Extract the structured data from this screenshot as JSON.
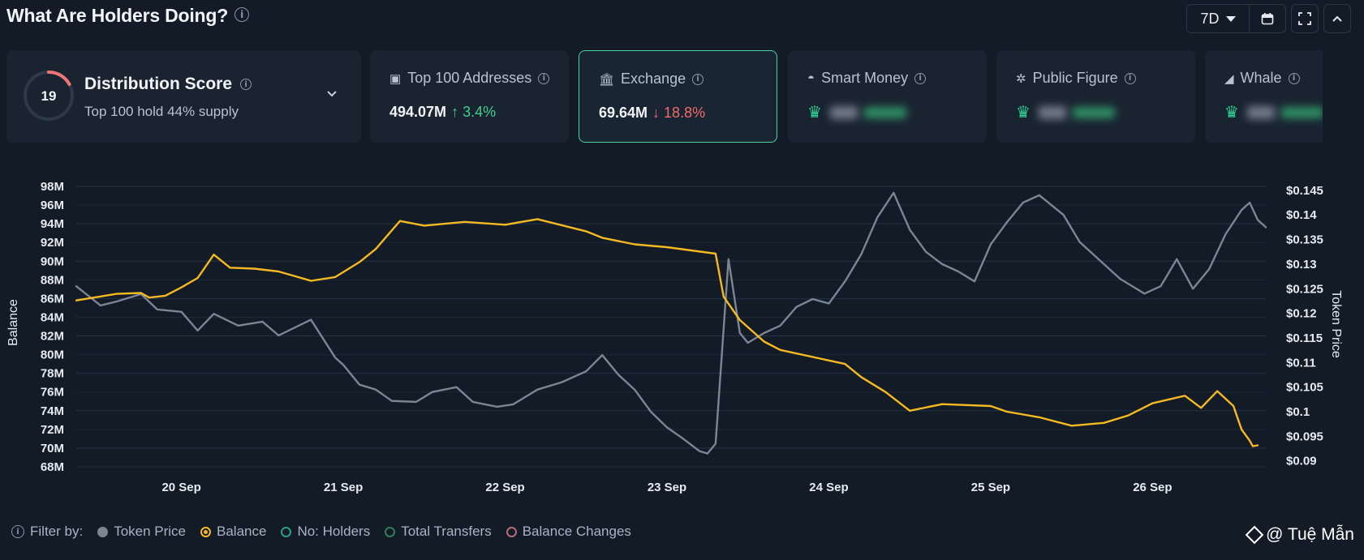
{
  "header": {
    "title": "What Are Holders Doing?",
    "range": "7D"
  },
  "cards": {
    "distribution": {
      "score": "19",
      "title": "Distribution Score",
      "subtitle": "Top 100 hold 44% supply"
    },
    "top100": {
      "label": "Top 100 Addresses",
      "value": "494.07M",
      "change": "↑ 3.4%"
    },
    "exchange": {
      "label": "Exchange",
      "value": "69.64M",
      "change": "↓ 18.8%"
    },
    "smart_money": {
      "label": "Smart Money"
    },
    "public_figure": {
      "label": "Public Figure"
    },
    "whale": {
      "label": "Whale"
    }
  },
  "legend": {
    "filter_label": "Filter by:",
    "items": [
      "Token Price",
      "Balance",
      "No: Holders",
      "Total Transfers",
      "Balance Changes"
    ]
  },
  "watermark": "@ Tuệ Mẫn",
  "colors": {
    "balance": "#f5b922",
    "price": "#7b8594",
    "accent": "#3ecf8e",
    "negative": "#f36a6a"
  },
  "chart_data": {
    "type": "line",
    "ylabel": "Balance",
    "ylabel_right": "Token Price",
    "x_labels": [
      "20 Sep",
      "21 Sep",
      "22 Sep",
      "23 Sep",
      "24 Sep",
      "25 Sep",
      "26 Sep"
    ],
    "x_range": [
      19.35,
      26.7
    ],
    "y_left_ticks": [
      "98M",
      "96M",
      "94M",
      "92M",
      "90M",
      "88M",
      "86M",
      "84M",
      "82M",
      "80M",
      "78M",
      "76M",
      "74M",
      "72M",
      "70M",
      "68M"
    ],
    "y_left_range": [
      68,
      98
    ],
    "y_right_ticks": [
      "$0.145",
      "$0.14",
      "$0.135",
      "$0.13",
      "$0.125",
      "$0.12",
      "$0.115",
      "$0.11",
      "$0.105",
      "$0.1",
      "$0.095",
      "$0.09"
    ],
    "y_right_range": [
      0.0888,
      0.1458
    ],
    "grid": true,
    "series": [
      {
        "name": "Balance",
        "axis": "left",
        "points": [
          [
            19.35,
            85.8
          ],
          [
            19.6,
            86.5
          ],
          [
            19.75,
            86.6
          ],
          [
            19.8,
            86.1
          ],
          [
            19.9,
            86.3
          ],
          [
            20.0,
            87.2
          ],
          [
            20.1,
            88.2
          ],
          [
            20.2,
            90.7
          ],
          [
            20.3,
            89.3
          ],
          [
            20.45,
            89.2
          ],
          [
            20.6,
            88.9
          ],
          [
            20.8,
            87.9
          ],
          [
            20.95,
            88.3
          ],
          [
            21.1,
            89.9
          ],
          [
            21.2,
            91.3
          ],
          [
            21.35,
            94.3
          ],
          [
            21.5,
            93.8
          ],
          [
            21.75,
            94.2
          ],
          [
            22.0,
            93.9
          ],
          [
            22.2,
            94.5
          ],
          [
            22.5,
            93.2
          ],
          [
            22.6,
            92.5
          ],
          [
            22.8,
            91.8
          ],
          [
            23.0,
            91.5
          ],
          [
            23.3,
            90.8
          ],
          [
            23.35,
            86.2
          ],
          [
            23.45,
            83.7
          ],
          [
            23.6,
            81.4
          ],
          [
            23.7,
            80.5
          ],
          [
            24.1,
            79.0
          ],
          [
            24.2,
            77.6
          ],
          [
            24.35,
            76.0
          ],
          [
            24.5,
            74.0
          ],
          [
            24.7,
            74.7
          ],
          [
            25.0,
            74.5
          ],
          [
            25.1,
            73.9
          ],
          [
            25.3,
            73.3
          ],
          [
            25.5,
            72.4
          ],
          [
            25.7,
            72.7
          ],
          [
            25.85,
            73.5
          ],
          [
            26.0,
            74.8
          ],
          [
            26.2,
            75.6
          ],
          [
            26.3,
            74.3
          ],
          [
            26.4,
            76.1
          ],
          [
            26.5,
            74.5
          ],
          [
            26.55,
            72.0
          ],
          [
            26.6,
            70.8
          ],
          [
            26.62,
            70.2
          ],
          [
            26.65,
            70.3
          ]
        ]
      },
      {
        "name": "Token Price",
        "axis": "right",
        "points": [
          [
            19.35,
            0.1255
          ],
          [
            19.5,
            0.1216
          ],
          [
            19.6,
            0.1224
          ],
          [
            19.75,
            0.1239
          ],
          [
            19.85,
            0.1208
          ],
          [
            20.0,
            0.1203
          ],
          [
            20.1,
            0.1165
          ],
          [
            20.2,
            0.1199
          ],
          [
            20.35,
            0.1175
          ],
          [
            20.5,
            0.1183
          ],
          [
            20.6,
            0.1155
          ],
          [
            20.8,
            0.1187
          ],
          [
            20.95,
            0.111
          ],
          [
            21.0,
            0.1095
          ],
          [
            21.1,
            0.1055
          ],
          [
            21.2,
            0.1045
          ],
          [
            21.3,
            0.1022
          ],
          [
            21.45,
            0.102
          ],
          [
            21.55,
            0.104
          ],
          [
            21.7,
            0.105
          ],
          [
            21.8,
            0.102
          ],
          [
            21.95,
            0.101
          ],
          [
            22.05,
            0.1015
          ],
          [
            22.2,
            0.1045
          ],
          [
            22.35,
            0.106
          ],
          [
            22.5,
            0.1082
          ],
          [
            22.6,
            0.1115
          ],
          [
            22.65,
            0.1095
          ],
          [
            22.7,
            0.1075
          ],
          [
            22.8,
            0.1045
          ],
          [
            22.9,
            0.1
          ],
          [
            23.0,
            0.0968
          ],
          [
            23.1,
            0.0945
          ],
          [
            23.2,
            0.092
          ],
          [
            23.25,
            0.0915
          ],
          [
            23.3,
            0.0935
          ],
          [
            23.38,
            0.131
          ],
          [
            23.45,
            0.116
          ],
          [
            23.5,
            0.114
          ],
          [
            23.6,
            0.116
          ],
          [
            23.7,
            0.1175
          ],
          [
            23.8,
            0.1213
          ],
          [
            23.9,
            0.1229
          ],
          [
            24.0,
            0.122
          ],
          [
            24.1,
            0.1265
          ],
          [
            24.2,
            0.132
          ],
          [
            24.3,
            0.1395
          ],
          [
            24.4,
            0.1445
          ],
          [
            24.5,
            0.137
          ],
          [
            24.6,
            0.1325
          ],
          [
            24.7,
            0.13
          ],
          [
            24.8,
            0.1285
          ],
          [
            24.9,
            0.1265
          ],
          [
            25.0,
            0.134
          ],
          [
            25.1,
            0.1385
          ],
          [
            25.2,
            0.1425
          ],
          [
            25.3,
            0.144
          ],
          [
            25.45,
            0.14
          ],
          [
            25.55,
            0.1345
          ],
          [
            25.7,
            0.13
          ],
          [
            25.8,
            0.127
          ],
          [
            25.95,
            0.124
          ],
          [
            26.05,
            0.1255
          ],
          [
            26.15,
            0.131
          ],
          [
            26.25,
            0.125
          ],
          [
            26.35,
            0.129
          ],
          [
            26.45,
            0.136
          ],
          [
            26.55,
            0.141
          ],
          [
            26.6,
            0.1425
          ],
          [
            26.65,
            0.139
          ],
          [
            26.7,
            0.1375
          ]
        ]
      }
    ]
  }
}
